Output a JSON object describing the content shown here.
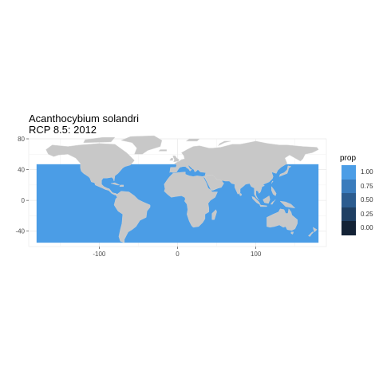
{
  "chart_data": {
    "type": "heatmap",
    "title": "Acanthocybium solandri",
    "subtitle": "RCP 8.5: 2012",
    "xlabel": "",
    "ylabel": "",
    "xlim": [
      -190,
      190
    ],
    "ylim": [
      -60,
      80
    ],
    "x_ticks": [
      -100,
      0,
      100
    ],
    "y_ticks": [
      80,
      40,
      0,
      -40
    ],
    "grid": true,
    "legend": {
      "title": "prop",
      "position": "right",
      "entries": [
        {
          "label": "1.00",
          "color": "#4b9de6"
        },
        {
          "label": "0.75",
          "color": "#3a7cbd"
        },
        {
          "label": "0.50",
          "color": "#2c5c8f"
        },
        {
          "label": "0.25",
          "color": "#1f3f63"
        },
        {
          "label": "0.00",
          "color": "#132235"
        }
      ]
    },
    "ocean_fill_value": 1.0,
    "ocean_color": "#4b9de6",
    "land_color": "#c8c8c8"
  }
}
